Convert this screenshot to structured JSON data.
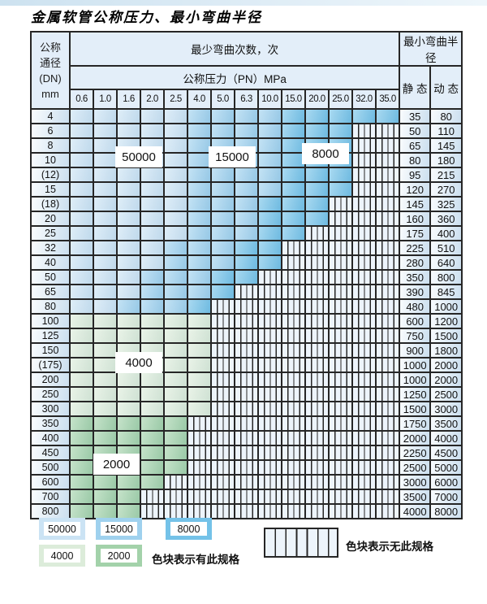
{
  "title": "金属软管公称压力、最小弯曲半径",
  "table": {
    "dn_header_lines": [
      "公称",
      "通径",
      "(DN)",
      "mm"
    ],
    "bend_cycles_header": "最少弯曲次数，次",
    "pressure_header": "公称压力（PN）MPa",
    "pressure_columns": [
      "0.6",
      "1.0",
      "1.6",
      "2.0",
      "2.5",
      "4.0",
      "5.0",
      "6.3",
      "10.0",
      "15.0",
      "20.0",
      "25.0",
      "32.0",
      "35.0"
    ],
    "radius_header": "最小弯曲半径",
    "static_header": "静 态",
    "dynamic_header": "动 态",
    "zone_codes": {
      "A": "50000",
      "B": "15000",
      "C": "8000",
      "D": "4000",
      "E": "2000",
      "-": "no-spec"
    },
    "rows": [
      {
        "dn": "4",
        "cells": "AAAAABBBBCCCCC",
        "static": "35",
        "dynamic": "80"
      },
      {
        "dn": "6",
        "cells": "AAAAABBBBCCC--",
        "static": "50",
        "dynamic": "110"
      },
      {
        "dn": "8",
        "cells": "AAAAABBBBCCC--",
        "static": "65",
        "dynamic": "145"
      },
      {
        "dn": "10",
        "cells": "AAAAABBBBCCC--",
        "static": "80",
        "dynamic": "180"
      },
      {
        "dn": "(12)",
        "cells": "AAAAABBBBCCC--",
        "static": "95",
        "dynamic": "215"
      },
      {
        "dn": "15",
        "cells": "AAAAABBBBCCC--",
        "static": "120",
        "dynamic": "270"
      },
      {
        "dn": "(18)",
        "cells": "AAAAABBBCCC---",
        "static": "145",
        "dynamic": "325"
      },
      {
        "dn": "20",
        "cells": "AAAAABBBCCC---",
        "static": "160",
        "dynamic": "360"
      },
      {
        "dn": "25",
        "cells": "AAAAABBBCC----",
        "static": "175",
        "dynamic": "400"
      },
      {
        "dn": "32",
        "cells": "AAAABBBCC-----",
        "static": "225",
        "dynamic": "510"
      },
      {
        "dn": "40",
        "cells": "AAAABBBCC-----",
        "static": "280",
        "dynamic": "640"
      },
      {
        "dn": "50",
        "cells": "AAABBBCC------",
        "static": "350",
        "dynamic": "800"
      },
      {
        "dn": "65",
        "cells": "AAABBBC-------",
        "static": "390",
        "dynamic": "845"
      },
      {
        "dn": "80",
        "cells": "AABBBC--------",
        "static": "480",
        "dynamic": "1000"
      },
      {
        "dn": "100",
        "cells": "DDDDDD--------",
        "static": "600",
        "dynamic": "1200"
      },
      {
        "dn": "125",
        "cells": "DDDDDD--------",
        "static": "750",
        "dynamic": "1500"
      },
      {
        "dn": "150",
        "cells": "DDDDDD--------",
        "static": "900",
        "dynamic": "1800"
      },
      {
        "dn": "(175)",
        "cells": "DDDDDD--------",
        "static": "1000",
        "dynamic": "2000"
      },
      {
        "dn": "200",
        "cells": "DDDDDD--------",
        "static": "1000",
        "dynamic": "2000"
      },
      {
        "dn": "250",
        "cells": "DDDDDD--------",
        "static": "1250",
        "dynamic": "2500"
      },
      {
        "dn": "300",
        "cells": "DDDDDD--------",
        "static": "1500",
        "dynamic": "3000"
      },
      {
        "dn": "350",
        "cells": "EEEEE---------",
        "static": "1750",
        "dynamic": "3500"
      },
      {
        "dn": "400",
        "cells": "EEEEE---------",
        "static": "2000",
        "dynamic": "4000"
      },
      {
        "dn": "450",
        "cells": "EEEEE---------",
        "static": "2250",
        "dynamic": "4500"
      },
      {
        "dn": "500",
        "cells": "EEEEE---------",
        "static": "2500",
        "dynamic": "5000"
      },
      {
        "dn": "600",
        "cells": "EEEE----------",
        "static": "3000",
        "dynamic": "6000"
      },
      {
        "dn": "700",
        "cells": "EEE-----------",
        "static": "3500",
        "dynamic": "7000"
      },
      {
        "dn": "800",
        "cells": "EEE-----------",
        "static": "4000",
        "dynamic": "8000"
      }
    ],
    "zone_labels": [
      {
        "text": "50000"
      },
      {
        "text": "15000"
      },
      {
        "text": "8000"
      },
      {
        "text": "4000"
      },
      {
        "text": "2000"
      }
    ]
  },
  "legend": {
    "items": [
      {
        "value": "50000",
        "zone": "A"
      },
      {
        "value": "15000",
        "zone": "B"
      },
      {
        "value": "8000",
        "zone": "C"
      },
      {
        "value": "4000",
        "zone": "D"
      },
      {
        "value": "2000",
        "zone": "E"
      }
    ],
    "available_label": "色块表示有此规格",
    "unavailable_label": "色块表示无此规格"
  },
  "colors": {
    "zone_50000": "#cbe3f4",
    "zone_15000": "#9fd1ee",
    "zone_8000": "#74c2e8",
    "zone_4000": "#dcecda",
    "zone_2000": "#a3d2aa",
    "hatch_fill": "#edf4fb",
    "grid_line": "#262626",
    "header_fill": "#e3eef9",
    "label_cell_fill": "#e7f1fa"
  }
}
